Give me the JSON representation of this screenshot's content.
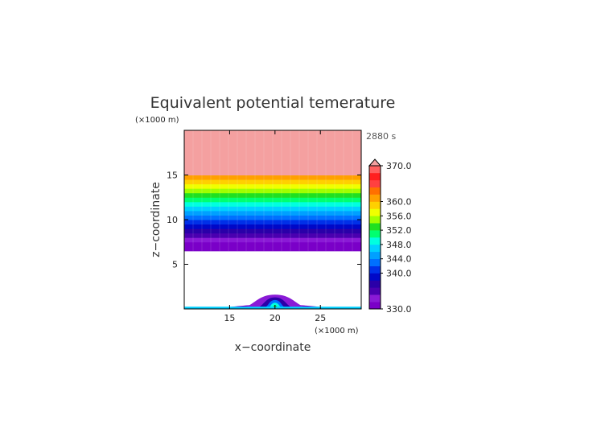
{
  "chart_data": {
    "type": "heatmap",
    "title": "Equivalent potential temerature",
    "xlabel": "x−coordinate",
    "ylabel": "z−coordinate",
    "x_unit": "(×1000 m)",
    "y_unit": "(×1000 m)",
    "time_label": "2880 s",
    "xlim": [
      10,
      29.5
    ],
    "ylim": [
      0,
      20
    ],
    "x_ticks": [
      15,
      20,
      25
    ],
    "y_ticks": [
      5,
      10,
      15
    ],
    "colorbar": {
      "min": 330,
      "max": 370,
      "step": 2,
      "ticks": [
        "330.0",
        "340.0",
        "344.0",
        "348.0",
        "352.0",
        "356.0",
        "360.0",
        "370.0"
      ],
      "overflow_color": "#f4a0a0",
      "colors": [
        "#7a00c8",
        "#8a1ad6",
        "#4a00b0",
        "#2a00a8",
        "#0008c8",
        "#0030e8",
        "#0070ff",
        "#00a0ff",
        "#00d0ff",
        "#00ffe0",
        "#00ff70",
        "#20e020",
        "#a0ff00",
        "#f0ff00",
        "#ffd000",
        "#ffa000",
        "#ff7000",
        "#ff4040",
        "#ff2020",
        "#ff6060"
      ]
    },
    "upper_layer_bands": [
      {
        "z": [
          6.5,
          7.5
        ],
        "value": 331
      },
      {
        "z": [
          7.5,
          8.0
        ],
        "value": 333
      },
      {
        "z": [
          8.0,
          8.5
        ],
        "value": 335
      },
      {
        "z": [
          8.5,
          9.0
        ],
        "value": 337
      },
      {
        "z": [
          9.0,
          9.5
        ],
        "value": 339
      },
      {
        "z": [
          9.5,
          10.0
        ],
        "value": 341
      },
      {
        "z": [
          10.0,
          10.5
        ],
        "value": 343
      },
      {
        "z": [
          10.5,
          11.0
        ],
        "value": 345
      },
      {
        "z": [
          11.0,
          11.5
        ],
        "value": 347
      },
      {
        "z": [
          11.5,
          12.0
        ],
        "value": 349
      },
      {
        "z": [
          12.0,
          12.5
        ],
        "value": 351
      },
      {
        "z": [
          12.5,
          13.0
        ],
        "value": 353
      },
      {
        "z": [
          13.0,
          13.5
        ],
        "value": 355
      },
      {
        "z": [
          13.5,
          14.0
        ],
        "value": 357
      },
      {
        "z": [
          14.0,
          14.5
        ],
        "value": 359
      },
      {
        "z": [
          14.5,
          15.0
        ],
        "value": 361
      },
      {
        "z": [
          15.0,
          20.0
        ],
        "value": 371
      }
    ],
    "surface_bubble": [
      {
        "value": 331,
        "x": [
          10.5,
          29.5
        ],
        "top": 0.5
      },
      {
        "value": 333,
        "x": [
          15.5,
          24.5
        ],
        "top": 1.6
      },
      {
        "value": 337,
        "x": [
          17.5,
          22.5
        ],
        "top": 1.3
      },
      {
        "value": 343,
        "x": [
          18.5,
          21.5
        ],
        "top": 1.0
      },
      {
        "value": 349,
        "x": [
          19.0,
          21.0
        ],
        "top": 0.7
      },
      {
        "value": 353,
        "x": [
          19.5,
          20.5
        ],
        "top": 0.4
      }
    ],
    "surface_strip": {
      "z": [
        0,
        0.25
      ],
      "value": 347
    }
  }
}
